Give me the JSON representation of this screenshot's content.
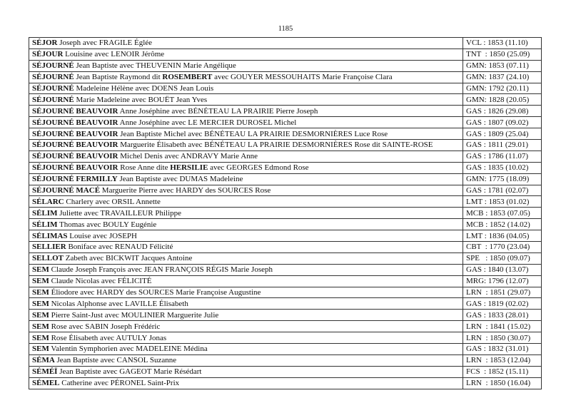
{
  "page_number": "1185",
  "rows": [
    {
      "segments": [
        {
          "t": "SÉJOR",
          "b": true
        },
        {
          "t": " Joseph avec FRAGILE Églée",
          "b": false
        }
      ],
      "place": "VCL : 1853 (11.10)"
    },
    {
      "segments": [
        {
          "t": "SÉJOUR",
          "b": true
        },
        {
          "t": " Louisine avec LENOIR Jérôme",
          "b": false
        }
      ],
      "place": "TNT  : 1850 (25.09)"
    },
    {
      "segments": [
        {
          "t": "SÉJOURNÉ",
          "b": true
        },
        {
          "t": " Jean Baptiste avec THEUVENIN Marie Angélique",
          "b": false
        }
      ],
      "place": "GMN: 1853 (07.11)"
    },
    {
      "segments": [
        {
          "t": "SÉJOURNÉ",
          "b": true
        },
        {
          "t": " Jean Baptiste Raymond dit ",
          "b": false
        },
        {
          "t": "ROSEMBERT",
          "b": true
        },
        {
          "t": " avec GOUYER MESSOUHAITS Marie Françoise Clara",
          "b": false
        }
      ],
      "place": "GMN: 1837 (24.10)"
    },
    {
      "segments": [
        {
          "t": "SÉJOURNÉ",
          "b": true
        },
        {
          "t": " Madeleine Hélène avec DOENS Jean Louis",
          "b": false
        }
      ],
      "place": "GMN: 1792 (20.11)"
    },
    {
      "segments": [
        {
          "t": "SÉJOURNÉ",
          "b": true
        },
        {
          "t": " Marie Madeleine avec BOUËT Jean Yves",
          "b": false
        }
      ],
      "place": "GMN: 1828 (20.05)"
    },
    {
      "segments": [
        {
          "t": "SÉJOURNÉ BEAUVOIR",
          "b": true
        },
        {
          "t": " Anne Joséphine avec BÉNÉTEAU LA PRAIRIE Pierre Joseph",
          "b": false
        }
      ],
      "place": "GAS : 1826 (29.08)"
    },
    {
      "segments": [
        {
          "t": "SÉJOURNÉ BEAUVOIR",
          "b": true
        },
        {
          "t": " Anne Joséphine avec LE MERCIER DUROSEL Michel",
          "b": false
        }
      ],
      "place": "GAS : 1807 (09.02)"
    },
    {
      "segments": [
        {
          "t": "SÉJOURNÉ BEAUVOIR",
          "b": true
        },
        {
          "t": " Jean Baptiste Michel avec BÉNÉTEAU LA PRAIRIE DESMORNIÈRES  Luce Rose",
          "b": false
        }
      ],
      "place": "GAS : 1809 (25.04)"
    },
    {
      "segments": [
        {
          "t": "SÉJOURNÉ BEAUVOIR",
          "b": true
        },
        {
          "t": " Marguerite Élisabeth avec BÉNÉTEAU LA PRAIRIE DESMORNIÈRES Rose dit SAINTE-ROSE",
          "b": false
        }
      ],
      "place": "GAS : 1811 (29.01)"
    },
    {
      "segments": [
        {
          "t": "SÉJOURNÉ BEAUVOIR",
          "b": true
        },
        {
          "t": " Michel Denis avec ANDRAVY Marie Anne",
          "b": false
        }
      ],
      "place": "GAS : 1786 (11.07)"
    },
    {
      "segments": [
        {
          "t": "SÉJOURNÉ BEAUVOIR",
          "b": true
        },
        {
          "t": " Rose Anne dite ",
          "b": false
        },
        {
          "t": "HERSILIE",
          "b": true
        },
        {
          "t": " avec GEORGES Edmond Rose",
          "b": false
        }
      ],
      "place": "GAS : 1835 (10.02)"
    },
    {
      "segments": [
        {
          "t": "SÉJOURNÉ FERMILLY",
          "b": true
        },
        {
          "t": " Jean Baptiste avec DUMAS Madeleine",
          "b": false
        }
      ],
      "place": "GMN: 1775 (18.09)"
    },
    {
      "segments": [
        {
          "t": "SÉJOURNÉ MACÉ",
          "b": true
        },
        {
          "t": " Marguerite Pierre avec HARDY des SOURCES Rose",
          "b": false
        }
      ],
      "place": "GAS : 1781 (02.07)"
    },
    {
      "segments": [
        {
          "t": "SÉLARC",
          "b": true
        },
        {
          "t": " Charlery avec ORSIL Annette",
          "b": false
        }
      ],
      "place": "LMT : 1853 (01.02)"
    },
    {
      "segments": [
        {
          "t": "SÉLIM",
          "b": true
        },
        {
          "t": " Juliette avec TRAVAILLEUR Philippe",
          "b": false
        }
      ],
      "place": "MCB : 1853 (07.05)"
    },
    {
      "segments": [
        {
          "t": "SÉLIM",
          "b": true
        },
        {
          "t": " Thomas avec BOULY Eugénie",
          "b": false
        }
      ],
      "place": "MCB : 1852 (14.02)"
    },
    {
      "segments": [
        {
          "t": "SÉLIMAS",
          "b": true
        },
        {
          "t": " Louise avec JOSEPH",
          "b": false
        }
      ],
      "place": "LMT : 1836 (04.05)"
    },
    {
      "segments": [
        {
          "t": "SELLIER",
          "b": true
        },
        {
          "t": " Boniface avec RENAUD Félicité",
          "b": false
        }
      ],
      "place": "CBT  : 1770 (23.04)"
    },
    {
      "segments": [
        {
          "t": "SELLOT",
          "b": true
        },
        {
          "t": " Zabeth avec BICKWIT Jacques Antoine",
          "b": false
        }
      ],
      "place": "SPE   : 1850 (09.07)"
    },
    {
      "segments": [
        {
          "t": "SEM",
          "b": true
        },
        {
          "t": " Claude Joseph François avec JEAN FRANÇOIS RÉGIS Marie Joseph",
          "b": false
        }
      ],
      "place": "GAS : 1840 (13.07)"
    },
    {
      "segments": [
        {
          "t": "SEM",
          "b": true
        },
        {
          "t": " Claude Nicolas avec FÉLICITÉ",
          "b": false
        }
      ],
      "place": "MRG: 1796 (12.07)"
    },
    {
      "segments": [
        {
          "t": "SEM",
          "b": true
        },
        {
          "t": " Éliodore avec HARDY des SOURCES Marie Françoise Augustine",
          "b": false
        }
      ],
      "place": "LRN  : 1851 (29.07)"
    },
    {
      "segments": [
        {
          "t": "SEM",
          "b": true
        },
        {
          "t": " Nicolas Alphonse avec LAVILLE Élisabeth",
          "b": false
        }
      ],
      "place": "GAS : 1819 (02.02)"
    },
    {
      "segments": [
        {
          "t": "SEM",
          "b": true
        },
        {
          "t": " Pierre Saint-Just avec MOULINIER Marguerite Julie",
          "b": false
        }
      ],
      "place": "GAS : 1833 (28.01)"
    },
    {
      "segments": [
        {
          "t": "SEM",
          "b": true
        },
        {
          "t": " Rose avec SABIN Joseph Frédéric",
          "b": false
        }
      ],
      "place": "LRN  : 1841 (15.02)"
    },
    {
      "segments": [
        {
          "t": "SEM",
          "b": true
        },
        {
          "t": " Rose Élisabeth avec AUTULY Jonas",
          "b": false
        }
      ],
      "place": "LRN  : 1850 (30.07)"
    },
    {
      "segments": [
        {
          "t": "SEM",
          "b": true
        },
        {
          "t": " Valentin Symphorien avec MADELEINE Médina",
          "b": false
        }
      ],
      "place": "GAS : 1832 (31.01)"
    },
    {
      "segments": [
        {
          "t": "SÉMA",
          "b": true
        },
        {
          "t": " Jean Baptiste avec CANSOL Suzanne",
          "b": false
        }
      ],
      "place": "LRN  : 1853 (12.04)"
    },
    {
      "segments": [
        {
          "t": "SÉMÉÏ",
          "b": true
        },
        {
          "t": " Jean Baptiste avec GAGEOT Marie Résédart",
          "b": false
        }
      ],
      "place": "FCS  : 1852 (15.11)"
    },
    {
      "segments": [
        {
          "t": "SÉMEL",
          "b": true
        },
        {
          "t": " Catherine avec PÉRONEL Saint-Prix",
          "b": false
        }
      ],
      "place": "LRN  : 1850 (16.04)"
    }
  ]
}
